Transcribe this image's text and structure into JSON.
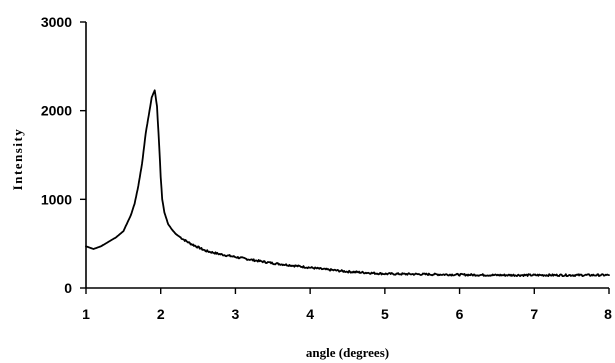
{
  "chart_data": {
    "type": "line",
    "title": "",
    "xlabel": "angle (degrees)",
    "ylabel": "Intensity",
    "xlim": [
      1,
      8
    ],
    "ylim": [
      0,
      3000
    ],
    "x_ticks": [
      1,
      2,
      3,
      4,
      5,
      6,
      7,
      8
    ],
    "y_ticks": [
      0,
      1000,
      2000,
      3000
    ],
    "grid": false,
    "legend": "none",
    "line_color": "#000000",
    "series": [
      {
        "x": [
          1.0,
          1.1,
          1.2,
          1.3,
          1.4,
          1.5,
          1.6,
          1.65,
          1.7,
          1.75,
          1.8,
          1.85,
          1.88,
          1.92,
          1.95,
          1.98,
          2.0,
          2.02,
          2.05,
          2.1,
          2.15,
          2.2,
          2.3,
          2.4,
          2.5,
          2.6,
          2.8,
          3.0,
          3.2,
          3.5,
          3.8,
          4.0,
          4.2,
          4.5,
          4.8,
          5.0,
          5.5,
          6.0,
          6.5,
          7.0,
          7.5,
          8.0
        ],
        "y": [
          470,
          440,
          470,
          520,
          570,
          640,
          820,
          950,
          1150,
          1400,
          1750,
          2000,
          2150,
          2230,
          2050,
          1600,
          1250,
          1000,
          850,
          720,
          660,
          610,
          550,
          500,
          460,
          420,
          380,
          350,
          320,
          280,
          250,
          230,
          210,
          185,
          170,
          160,
          155,
          150,
          145,
          145,
          145,
          145
        ]
      }
    ]
  }
}
